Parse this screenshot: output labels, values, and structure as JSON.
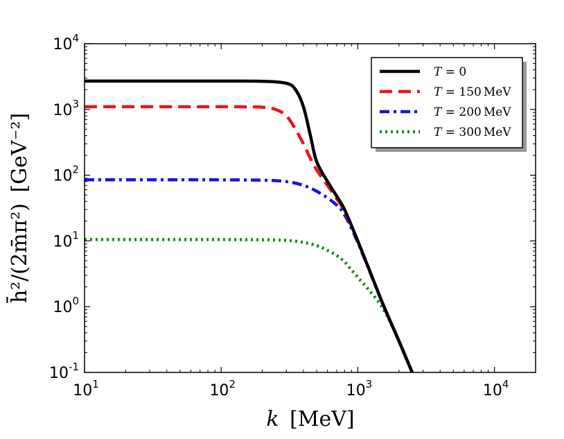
{
  "chart_data": {
    "type": "line",
    "title": "",
    "xscale": "log",
    "yscale": "log",
    "xlim": [
      10,
      20000
    ],
    "ylim": [
      0.1,
      10000
    ],
    "xlabel": {
      "main": "k",
      "unit": "[MeV]"
    },
    "ylabel": {
      "main": "h̄²/(2m̄π²)",
      "unit": "[GeV⁻²]"
    },
    "x_ticks": [
      {
        "value": 10,
        "base": "10",
        "exp": "1"
      },
      {
        "value": 100,
        "base": "10",
        "exp": "2"
      },
      {
        "value": 1000,
        "base": "10",
        "exp": "3"
      },
      {
        "value": 10000,
        "base": "10",
        "exp": "4"
      }
    ],
    "y_ticks": [
      {
        "value": 0.1,
        "base": "10",
        "exp": "-1"
      },
      {
        "value": 1,
        "base": "10",
        "exp": "0"
      },
      {
        "value": 10,
        "base": "10",
        "exp": "1"
      },
      {
        "value": 100,
        "base": "10",
        "exp": "2"
      },
      {
        "value": 1000,
        "base": "10",
        "exp": "3"
      },
      {
        "value": 10000,
        "base": "10",
        "exp": "4"
      }
    ],
    "legend_position": "top-right",
    "series": [
      {
        "name": "T = 0",
        "label_var": "T",
        "label_val": " = 0",
        "label_unit": "",
        "color": "#000000",
        "style": "solid",
        "x": [
          10,
          50,
          100,
          200,
          300,
          350,
          400,
          450,
          500,
          600,
          700,
          800,
          1000,
          1500,
          2000,
          2500
        ],
        "y": [
          2700,
          2700,
          2700,
          2680,
          2500,
          2000,
          1100,
          400,
          160,
          80,
          48,
          30,
          10,
          1.2,
          0.3,
          0.1
        ]
      },
      {
        "name": "T = 150 MeV",
        "label_var": "T",
        "label_val": " = 150",
        "label_unit": "MeV",
        "color": "#e8141c",
        "style": "dashed",
        "x": [
          10,
          50,
          100,
          150,
          200,
          250,
          300,
          350,
          400,
          450,
          500,
          600,
          700,
          800,
          1000,
          1500,
          2000,
          2500
        ],
        "y": [
          1100,
          1100,
          1100,
          1095,
          1080,
          1000,
          800,
          500,
          300,
          180,
          120,
          70,
          44,
          28,
          10,
          1.2,
          0.3,
          0.1
        ]
      },
      {
        "name": "T = 200 MeV",
        "label_var": "T",
        "label_val": " = 200",
        "label_unit": "MeV",
        "color": "#1414e8",
        "style": "dashdot",
        "x": [
          10,
          50,
          100,
          200,
          300,
          400,
          500,
          600,
          700,
          800,
          1000,
          1500,
          2000,
          2500
        ],
        "y": [
          85,
          85,
          85,
          84,
          80,
          70,
          57,
          45,
          35,
          25,
          9.5,
          1.2,
          0.3,
          0.1
        ]
      },
      {
        "name": "T = 300 MeV",
        "label_var": "T",
        "label_val": " = 300",
        "label_unit": "MeV",
        "color": "#148c14",
        "style": "dotted",
        "x": [
          10,
          50,
          100,
          200,
          300,
          400,
          500,
          600,
          700,
          800,
          900,
          1000,
          1500,
          2000,
          2500
        ],
        "y": [
          10.5,
          10.5,
          10.5,
          10.4,
          10.2,
          9.5,
          8.5,
          7.2,
          6.0,
          4.8,
          3.6,
          2.8,
          1.0,
          0.3,
          0.1
        ]
      }
    ]
  }
}
